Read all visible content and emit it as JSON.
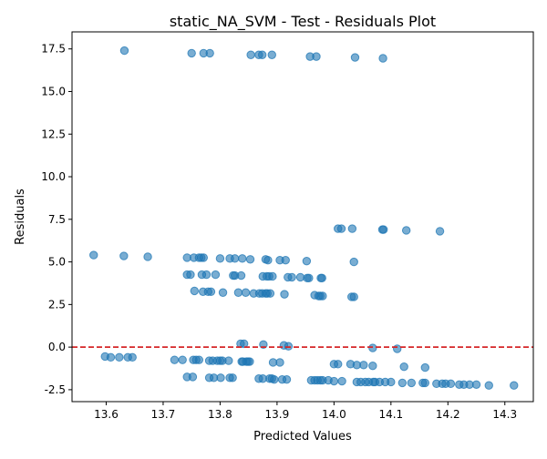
{
  "chart_data": {
    "type": "scatter",
    "title": "static_NA_SVM - Test - Residuals Plot",
    "xlabel": "Predicted Values",
    "ylabel": "Residuals",
    "xlim": [
      13.54,
      14.35
    ],
    "ylim": [
      -3.2,
      18.5
    ],
    "x_ticks": [
      13.6,
      13.7,
      13.8,
      13.9,
      14.0,
      14.1,
      14.2,
      14.3
    ],
    "y_ticks": [
      -2.5,
      0.0,
      2.5,
      5.0,
      7.5,
      10.0,
      12.5,
      15.0,
      17.5
    ],
    "reference_line": {
      "y": 0,
      "style": "dashed",
      "color": "#d62728"
    },
    "point_color": "#1f77b4",
    "point_alpha": 0.6,
    "grid": false,
    "points": [
      [
        13.632,
        17.4
      ],
      [
        13.75,
        17.25
      ],
      [
        13.771,
        17.25
      ],
      [
        13.782,
        17.25
      ],
      [
        13.854,
        17.15
      ],
      [
        13.868,
        17.15
      ],
      [
        13.874,
        17.15
      ],
      [
        13.891,
        17.15
      ],
      [
        13.958,
        17.05
      ],
      [
        13.969,
        17.05
      ],
      [
        14.037,
        17.0
      ],
      [
        14.086,
        16.95
      ],
      [
        14.007,
        6.95
      ],
      [
        14.013,
        6.95
      ],
      [
        14.032,
        6.95
      ],
      [
        14.085,
        6.9
      ],
      [
        14.087,
        6.9
      ],
      [
        14.127,
        6.85
      ],
      [
        14.186,
        6.8
      ],
      [
        13.578,
        5.4
      ],
      [
        13.631,
        5.35
      ],
      [
        13.673,
        5.3
      ],
      [
        13.742,
        5.25
      ],
      [
        13.754,
        5.25
      ],
      [
        13.763,
        5.25
      ],
      [
        13.767,
        5.25
      ],
      [
        13.771,
        5.25
      ],
      [
        13.8,
        5.2
      ],
      [
        13.817,
        5.2
      ],
      [
        13.826,
        5.2
      ],
      [
        13.839,
        5.2
      ],
      [
        13.853,
        5.15
      ],
      [
        13.88,
        5.15
      ],
      [
        13.884,
        5.1
      ],
      [
        13.905,
        5.1
      ],
      [
        13.915,
        5.1
      ],
      [
        13.952,
        5.05
      ],
      [
        14.035,
        5.0
      ],
      [
        13.742,
        4.25
      ],
      [
        13.748,
        4.25
      ],
      [
        13.768,
        4.25
      ],
      [
        13.776,
        4.25
      ],
      [
        13.792,
        4.25
      ],
      [
        13.823,
        4.2
      ],
      [
        13.826,
        4.2
      ],
      [
        13.837,
        4.2
      ],
      [
        13.875,
        4.15
      ],
      [
        13.882,
        4.15
      ],
      [
        13.886,
        4.15
      ],
      [
        13.892,
        4.15
      ],
      [
        13.919,
        4.1
      ],
      [
        13.926,
        4.1
      ],
      [
        13.941,
        4.1
      ],
      [
        13.953,
        4.05
      ],
      [
        13.956,
        4.05
      ],
      [
        13.977,
        4.05
      ],
      [
        13.979,
        4.05
      ],
      [
        13.755,
        3.3
      ],
      [
        13.77,
        3.25
      ],
      [
        13.779,
        3.25
      ],
      [
        13.784,
        3.25
      ],
      [
        13.805,
        3.2
      ],
      [
        13.832,
        3.2
      ],
      [
        13.845,
        3.2
      ],
      [
        13.859,
        3.15
      ],
      [
        13.869,
        3.15
      ],
      [
        13.874,
        3.15
      ],
      [
        13.88,
        3.15
      ],
      [
        13.883,
        3.15
      ],
      [
        13.888,
        3.15
      ],
      [
        13.913,
        3.1
      ],
      [
        13.966,
        3.05
      ],
      [
        13.973,
        3.0
      ],
      [
        13.976,
        3.0
      ],
      [
        13.98,
        3.0
      ],
      [
        14.031,
        2.95
      ],
      [
        14.035,
        2.95
      ],
      [
        13.836,
        0.2
      ],
      [
        13.842,
        0.2
      ],
      [
        13.876,
        0.15
      ],
      [
        13.912,
        0.1
      ],
      [
        13.92,
        0.05
      ],
      [
        14.068,
        -0.05
      ],
      [
        14.111,
        -0.1
      ],
      [
        13.598,
        -0.55
      ],
      [
        13.608,
        -0.6
      ],
      [
        13.623,
        -0.6
      ],
      [
        13.638,
        -0.6
      ],
      [
        13.646,
        -0.6
      ],
      [
        13.72,
        -0.75
      ],
      [
        13.734,
        -0.75
      ],
      [
        13.753,
        -0.75
      ],
      [
        13.758,
        -0.75
      ],
      [
        13.763,
        -0.75
      ],
      [
        13.781,
        -0.8
      ],
      [
        13.787,
        -0.8
      ],
      [
        13.795,
        -0.8
      ],
      [
        13.8,
        -0.8
      ],
      [
        13.804,
        -0.8
      ],
      [
        13.815,
        -0.8
      ],
      [
        13.838,
        -0.85
      ],
      [
        13.84,
        -0.85
      ],
      [
        13.846,
        -0.85
      ],
      [
        13.849,
        -0.85
      ],
      [
        13.852,
        -0.85
      ],
      [
        13.893,
        -0.9
      ],
      [
        13.905,
        -0.9
      ],
      [
        14.0,
        -1.0
      ],
      [
        14.007,
        -1.0
      ],
      [
        14.029,
        -1.0
      ],
      [
        14.04,
        -1.05
      ],
      [
        14.052,
        -1.05
      ],
      [
        14.068,
        -1.1
      ],
      [
        14.123,
        -1.15
      ],
      [
        14.16,
        -1.2
      ],
      [
        13.742,
        -1.75
      ],
      [
        13.752,
        -1.75
      ],
      [
        13.781,
        -1.8
      ],
      [
        13.789,
        -1.8
      ],
      [
        13.801,
        -1.8
      ],
      [
        13.817,
        -1.8
      ],
      [
        13.822,
        -1.8
      ],
      [
        13.868,
        -1.85
      ],
      [
        13.875,
        -1.85
      ],
      [
        13.887,
        -1.85
      ],
      [
        13.891,
        -1.85
      ],
      [
        13.895,
        -1.9
      ],
      [
        13.909,
        -1.9
      ],
      [
        13.917,
        -1.9
      ],
      [
        13.96,
        -1.95
      ],
      [
        13.966,
        -1.95
      ],
      [
        13.971,
        -1.95
      ],
      [
        13.976,
        -1.95
      ],
      [
        13.98,
        -1.95
      ],
      [
        13.99,
        -1.95
      ],
      [
        14.0,
        -2.0
      ],
      [
        14.014,
        -2.0
      ],
      [
        14.04,
        -2.05
      ],
      [
        14.047,
        -2.05
      ],
      [
        14.055,
        -2.05
      ],
      [
        14.061,
        -2.05
      ],
      [
        14.069,
        -2.05
      ],
      [
        14.072,
        -2.05
      ],
      [
        14.08,
        -2.05
      ],
      [
        14.09,
        -2.05
      ],
      [
        14.1,
        -2.05
      ],
      [
        14.12,
        -2.1
      ],
      [
        14.136,
        -2.1
      ],
      [
        14.156,
        -2.1
      ],
      [
        14.16,
        -2.1
      ],
      [
        14.18,
        -2.15
      ],
      [
        14.19,
        -2.15
      ],
      [
        14.196,
        -2.15
      ],
      [
        14.205,
        -2.15
      ],
      [
        14.22,
        -2.2
      ],
      [
        14.228,
        -2.2
      ],
      [
        14.238,
        -2.2
      ],
      [
        14.25,
        -2.2
      ],
      [
        14.272,
        -2.25
      ],
      [
        14.316,
        -2.25
      ]
    ]
  }
}
